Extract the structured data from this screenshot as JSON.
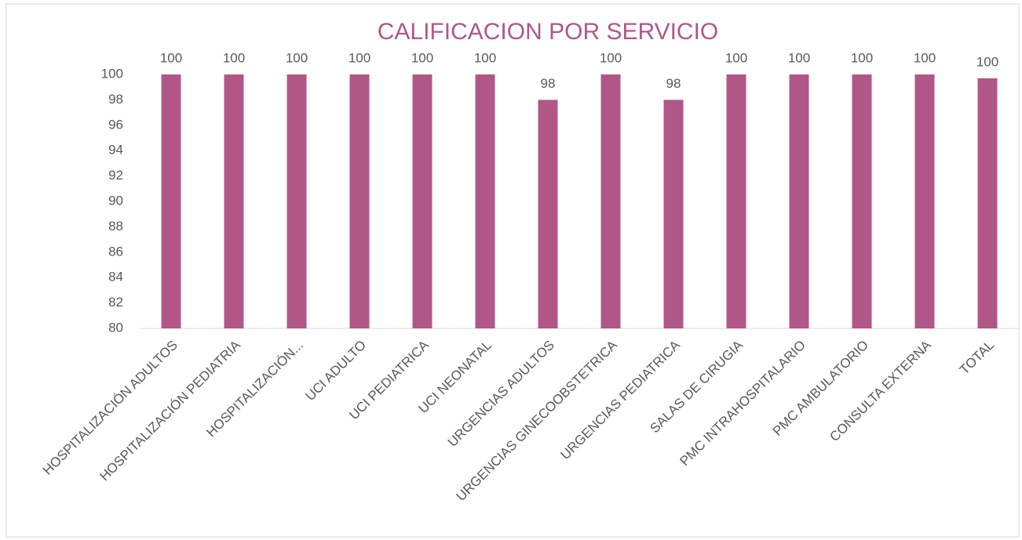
{
  "chart_data": {
    "type": "bar",
    "title": "CALIFICACION POR SERVICIO",
    "categories": [
      "HOSPITALIZACIÓN ADULTOS",
      "HOSPITALIZACIÓN PEDIATRIA",
      "HOSPITALIZACIÓN...",
      "UCI ADULTO",
      "UCI PEDIATRICA",
      "UCI NEONATAL",
      "URGENCIAS ADULTOS",
      "URGENCIAS GINECOOBSTETRICA",
      "URGENCIAS PEDIATRICA",
      "SALAS DE CIRUGIA",
      "PMC INTRAHOSPITALARIO",
      "PMC AMBULATORIO",
      "CONSULTA EXTERNA",
      "TOTAL"
    ],
    "values": [
      100,
      100,
      100,
      100,
      100,
      100,
      98,
      100,
      98,
      100,
      100,
      100,
      100,
      99.7
    ],
    "value_labels": [
      "100",
      "100",
      "100",
      "100",
      "100",
      "100",
      "98",
      "100",
      "98",
      "100",
      "100",
      "100",
      "100",
      "100"
    ],
    "color": "#b05788",
    "ylim": [
      80,
      100
    ],
    "yticks": [
      80,
      82,
      84,
      86,
      88,
      90,
      92,
      94,
      96,
      98,
      100
    ],
    "grid": false
  }
}
